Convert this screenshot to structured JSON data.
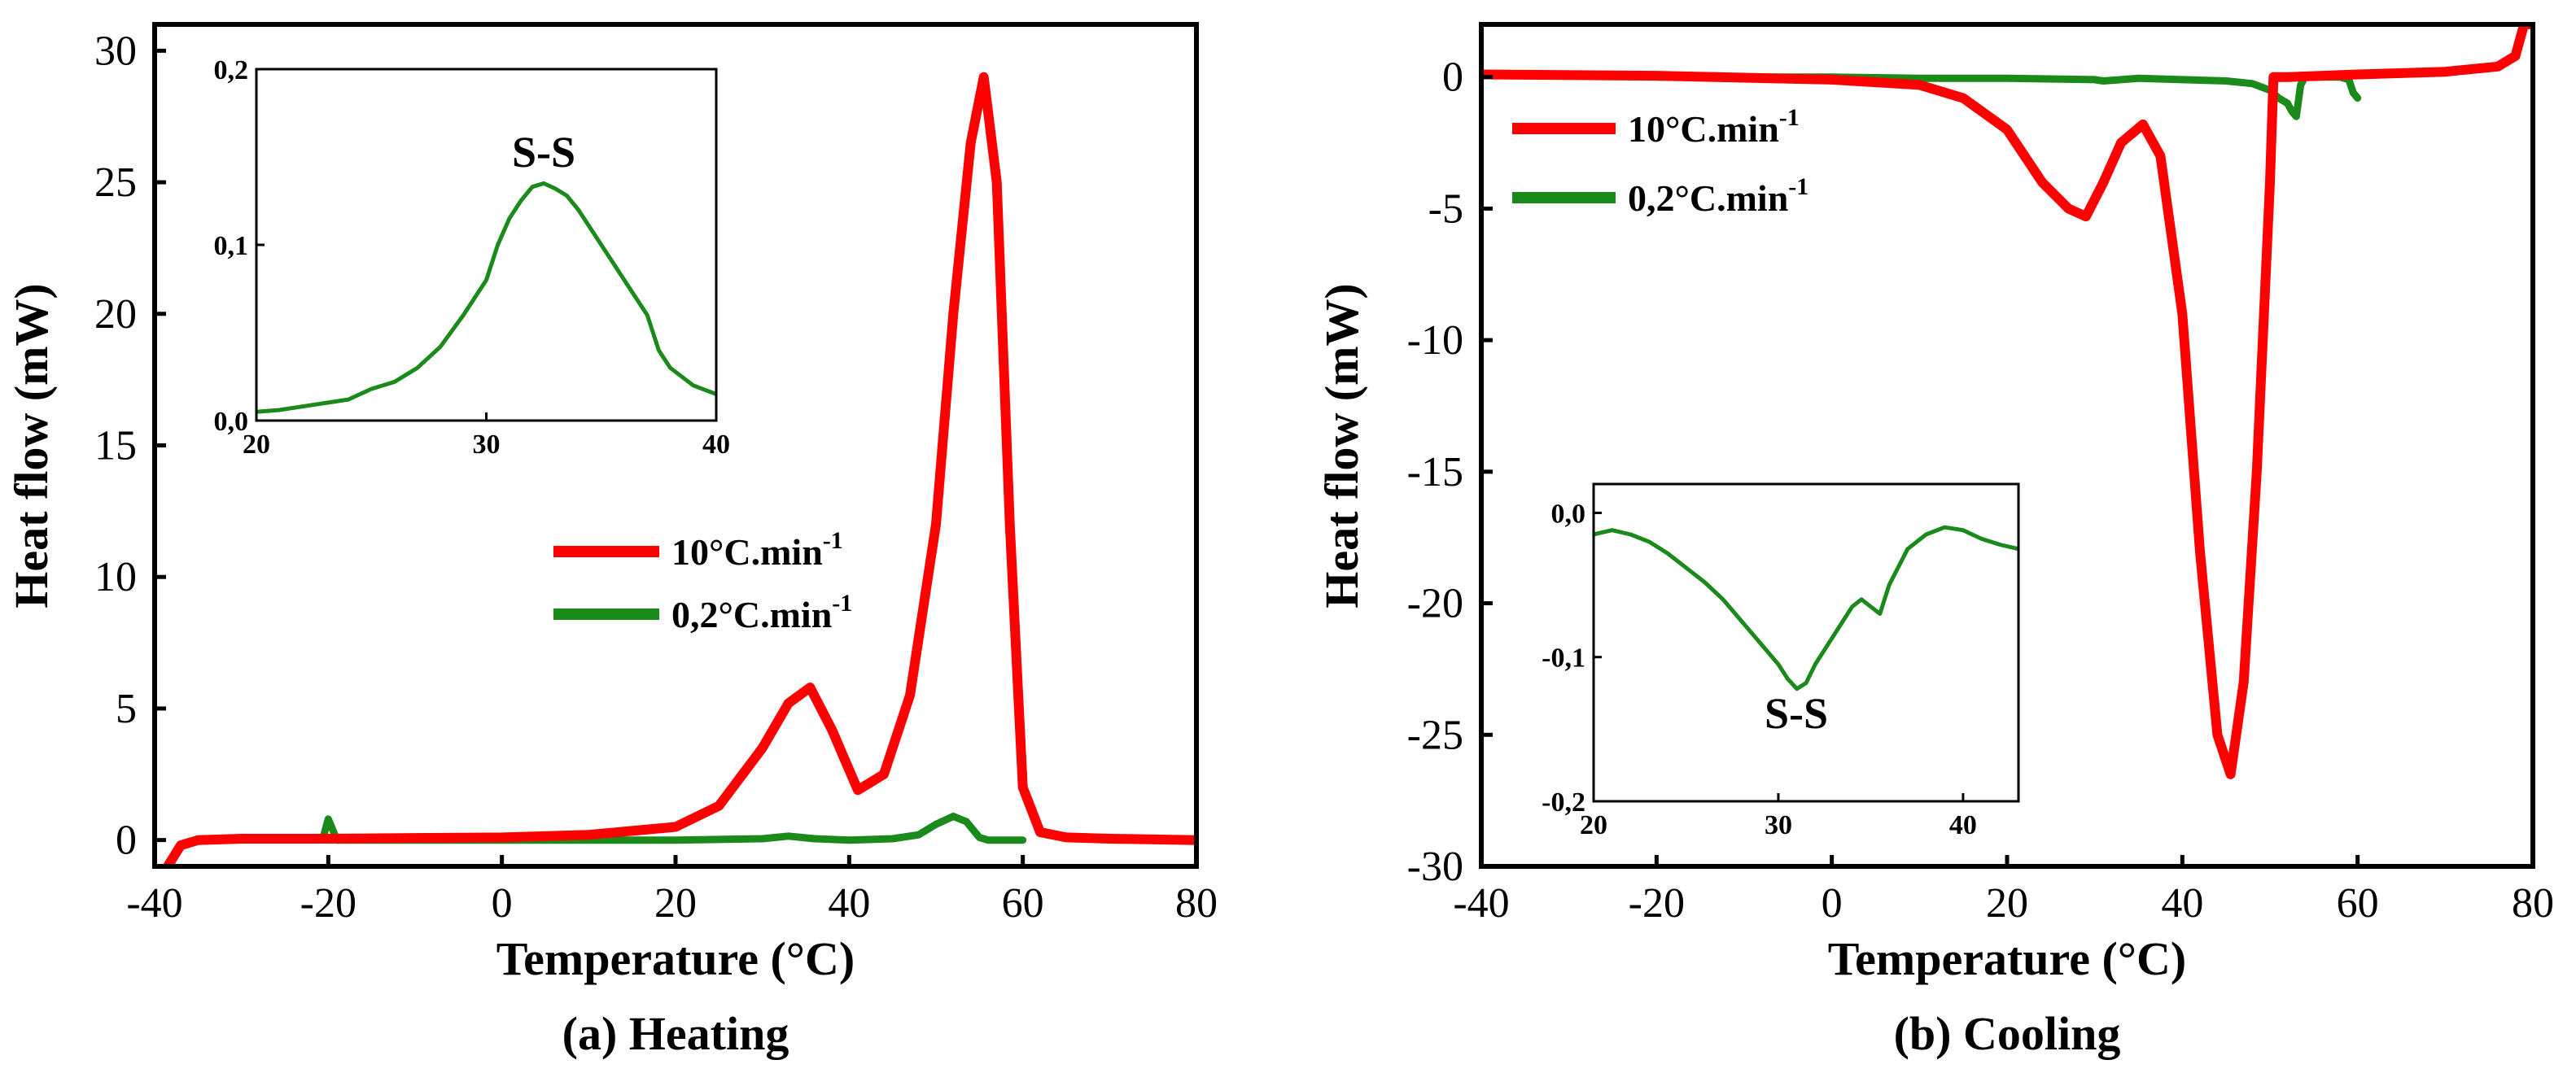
{
  "chart_data": [
    {
      "type": "line",
      "caption": "(a) Heating",
      "xlabel": "Temperature (°C)",
      "ylabel": "Heat flow (mW)",
      "xlim": [
        -40,
        80
      ],
      "ylim": [
        -1,
        31
      ],
      "xticks": [
        "-40",
        "-20",
        "0",
        "20",
        "40",
        "60",
        "80"
      ],
      "yticks": [
        "0",
        "5",
        "10",
        "15",
        "20",
        "25",
        "30"
      ],
      "legend_position": "center-right",
      "series": [
        {
          "name": "10°C.min",
          "name_superscript": "-1",
          "color": "#ff0000",
          "x": [
            -38.5,
            -37,
            -35,
            -30,
            -20,
            -10,
            0,
            10,
            20,
            25,
            30,
            33,
            35.5,
            38,
            41,
            44,
            47,
            50,
            52,
            54,
            55.5,
            57,
            58.5,
            60,
            62,
            65,
            70,
            80
          ],
          "y": [
            -1,
            -0.2,
            0,
            0.05,
            0.05,
            0.08,
            0.1,
            0.2,
            0.5,
            1.3,
            3.5,
            5.2,
            5.8,
            4.2,
            1.9,
            2.5,
            5.5,
            12,
            20,
            26.5,
            29,
            25,
            12,
            2,
            0.3,
            0.1,
            0.05,
            0
          ]
        },
        {
          "name": "0,2°C.min",
          "name_superscript": "-1",
          "color": "#1a8a1a",
          "x": [
            -20.5,
            -20,
            -19.5,
            -19,
            -18,
            -10,
            0,
            10,
            20,
            30,
            33,
            36,
            40,
            45,
            48,
            50,
            52,
            53.5,
            55,
            56,
            60
          ],
          "y": [
            0.2,
            0.8,
            0.4,
            0,
            0,
            0,
            0,
            0,
            0,
            0.05,
            0.15,
            0.05,
            0,
            0.05,
            0.2,
            0.6,
            0.9,
            0.7,
            0.1,
            0,
            0
          ]
        }
      ],
      "inset": {
        "annotation": "S-S",
        "xlim": [
          20,
          40
        ],
        "ylim": [
          0,
          0.2
        ],
        "xticks": [
          "20",
          "30",
          "40"
        ],
        "yticks": [
          "0,0",
          "0,1",
          "0,2"
        ],
        "color": "#1a8a1a",
        "x": [
          20,
          21,
          22,
          23,
          24,
          25,
          26,
          27,
          28,
          29,
          30,
          30.5,
          31,
          31.5,
          32,
          32.5,
          33,
          33.5,
          34,
          35,
          36,
          37,
          37.5,
          38,
          39,
          40
        ],
        "y": [
          0.005,
          0.006,
          0.008,
          0.01,
          0.012,
          0.018,
          0.022,
          0.03,
          0.042,
          0.06,
          0.08,
          0.1,
          0.115,
          0.125,
          0.133,
          0.135,
          0.132,
          0.128,
          0.12,
          0.1,
          0.08,
          0.06,
          0.04,
          0.03,
          0.02,
          0.015
        ]
      }
    },
    {
      "type": "line",
      "caption": "(b) Cooling",
      "xlabel": "Temperature (°C)",
      "ylabel": "Heat flow (mW)",
      "xlim": [
        -40,
        80
      ],
      "ylim": [
        -30,
        2
      ],
      "xticks": [
        "-40",
        "-20",
        "0",
        "20",
        "40",
        "60",
        "80"
      ],
      "yticks": [
        "0",
        "-5",
        "-10",
        "-15",
        "-20",
        "-25",
        "-30"
      ],
      "legend_position": "upper-left",
      "series": [
        {
          "name": "10°C.min",
          "name_superscript": "-1",
          "color": "#ff0000",
          "x": [
            -40,
            -20,
            0,
            10,
            15,
            20,
            24,
            27,
            29,
            31,
            33,
            35.5,
            37.5,
            40,
            42,
            44,
            45.5,
            47,
            48.5,
            50,
            50.4,
            52,
            60,
            70,
            76,
            78,
            79,
            80
          ],
          "y": [
            0.1,
            0.05,
            -0.1,
            -0.3,
            -0.8,
            -2,
            -4,
            -5,
            -5.3,
            -4,
            -2.5,
            -1.8,
            -3,
            -9,
            -18,
            -25,
            -26.5,
            -23,
            -15,
            -4,
            0,
            0,
            0.1,
            0.2,
            0.4,
            0.8,
            2,
            2
          ]
        },
        {
          "name": "0,2°C.min",
          "name_superscript": "-1",
          "color": "#1a8a1a",
          "x": [
            -20,
            -10,
            0,
            10,
            20,
            30,
            31,
            35,
            40,
            45,
            48,
            50,
            51,
            52,
            52.5,
            53,
            53.5,
            54,
            56,
            58,
            59,
            59.5,
            60
          ],
          "y": [
            0,
            0,
            0,
            -0.05,
            -0.05,
            -0.1,
            -0.15,
            -0.05,
            -0.1,
            -0.15,
            -0.25,
            -0.5,
            -0.8,
            -1.0,
            -1.3,
            -1.5,
            -0.3,
            0,
            0,
            0,
            -0.1,
            -0.6,
            -0.8
          ]
        }
      ],
      "inset": {
        "annotation": "S-S",
        "xlim": [
          20,
          43
        ],
        "ylim": [
          -0.2,
          0.02
        ],
        "xticks": [
          "20",
          "30",
          "40"
        ],
        "yticks": [
          "0,0",
          "-0,1",
          "-0,2"
        ],
        "color": "#1a8a1a",
        "x": [
          20,
          21,
          22,
          23,
          24,
          25,
          26,
          27,
          28,
          29,
          30,
          30.5,
          31,
          31.5,
          32,
          33,
          34,
          34.5,
          35,
          35.5,
          36,
          37,
          38,
          39,
          40,
          41,
          42,
          43
        ],
        "y": [
          -0.015,
          -0.012,
          -0.015,
          -0.02,
          -0.028,
          -0.038,
          -0.048,
          -0.06,
          -0.075,
          -0.09,
          -0.105,
          -0.115,
          -0.122,
          -0.118,
          -0.105,
          -0.085,
          -0.065,
          -0.06,
          -0.065,
          -0.07,
          -0.05,
          -0.025,
          -0.015,
          -0.01,
          -0.012,
          -0.018,
          -0.022,
          -0.025
        ]
      }
    }
  ]
}
